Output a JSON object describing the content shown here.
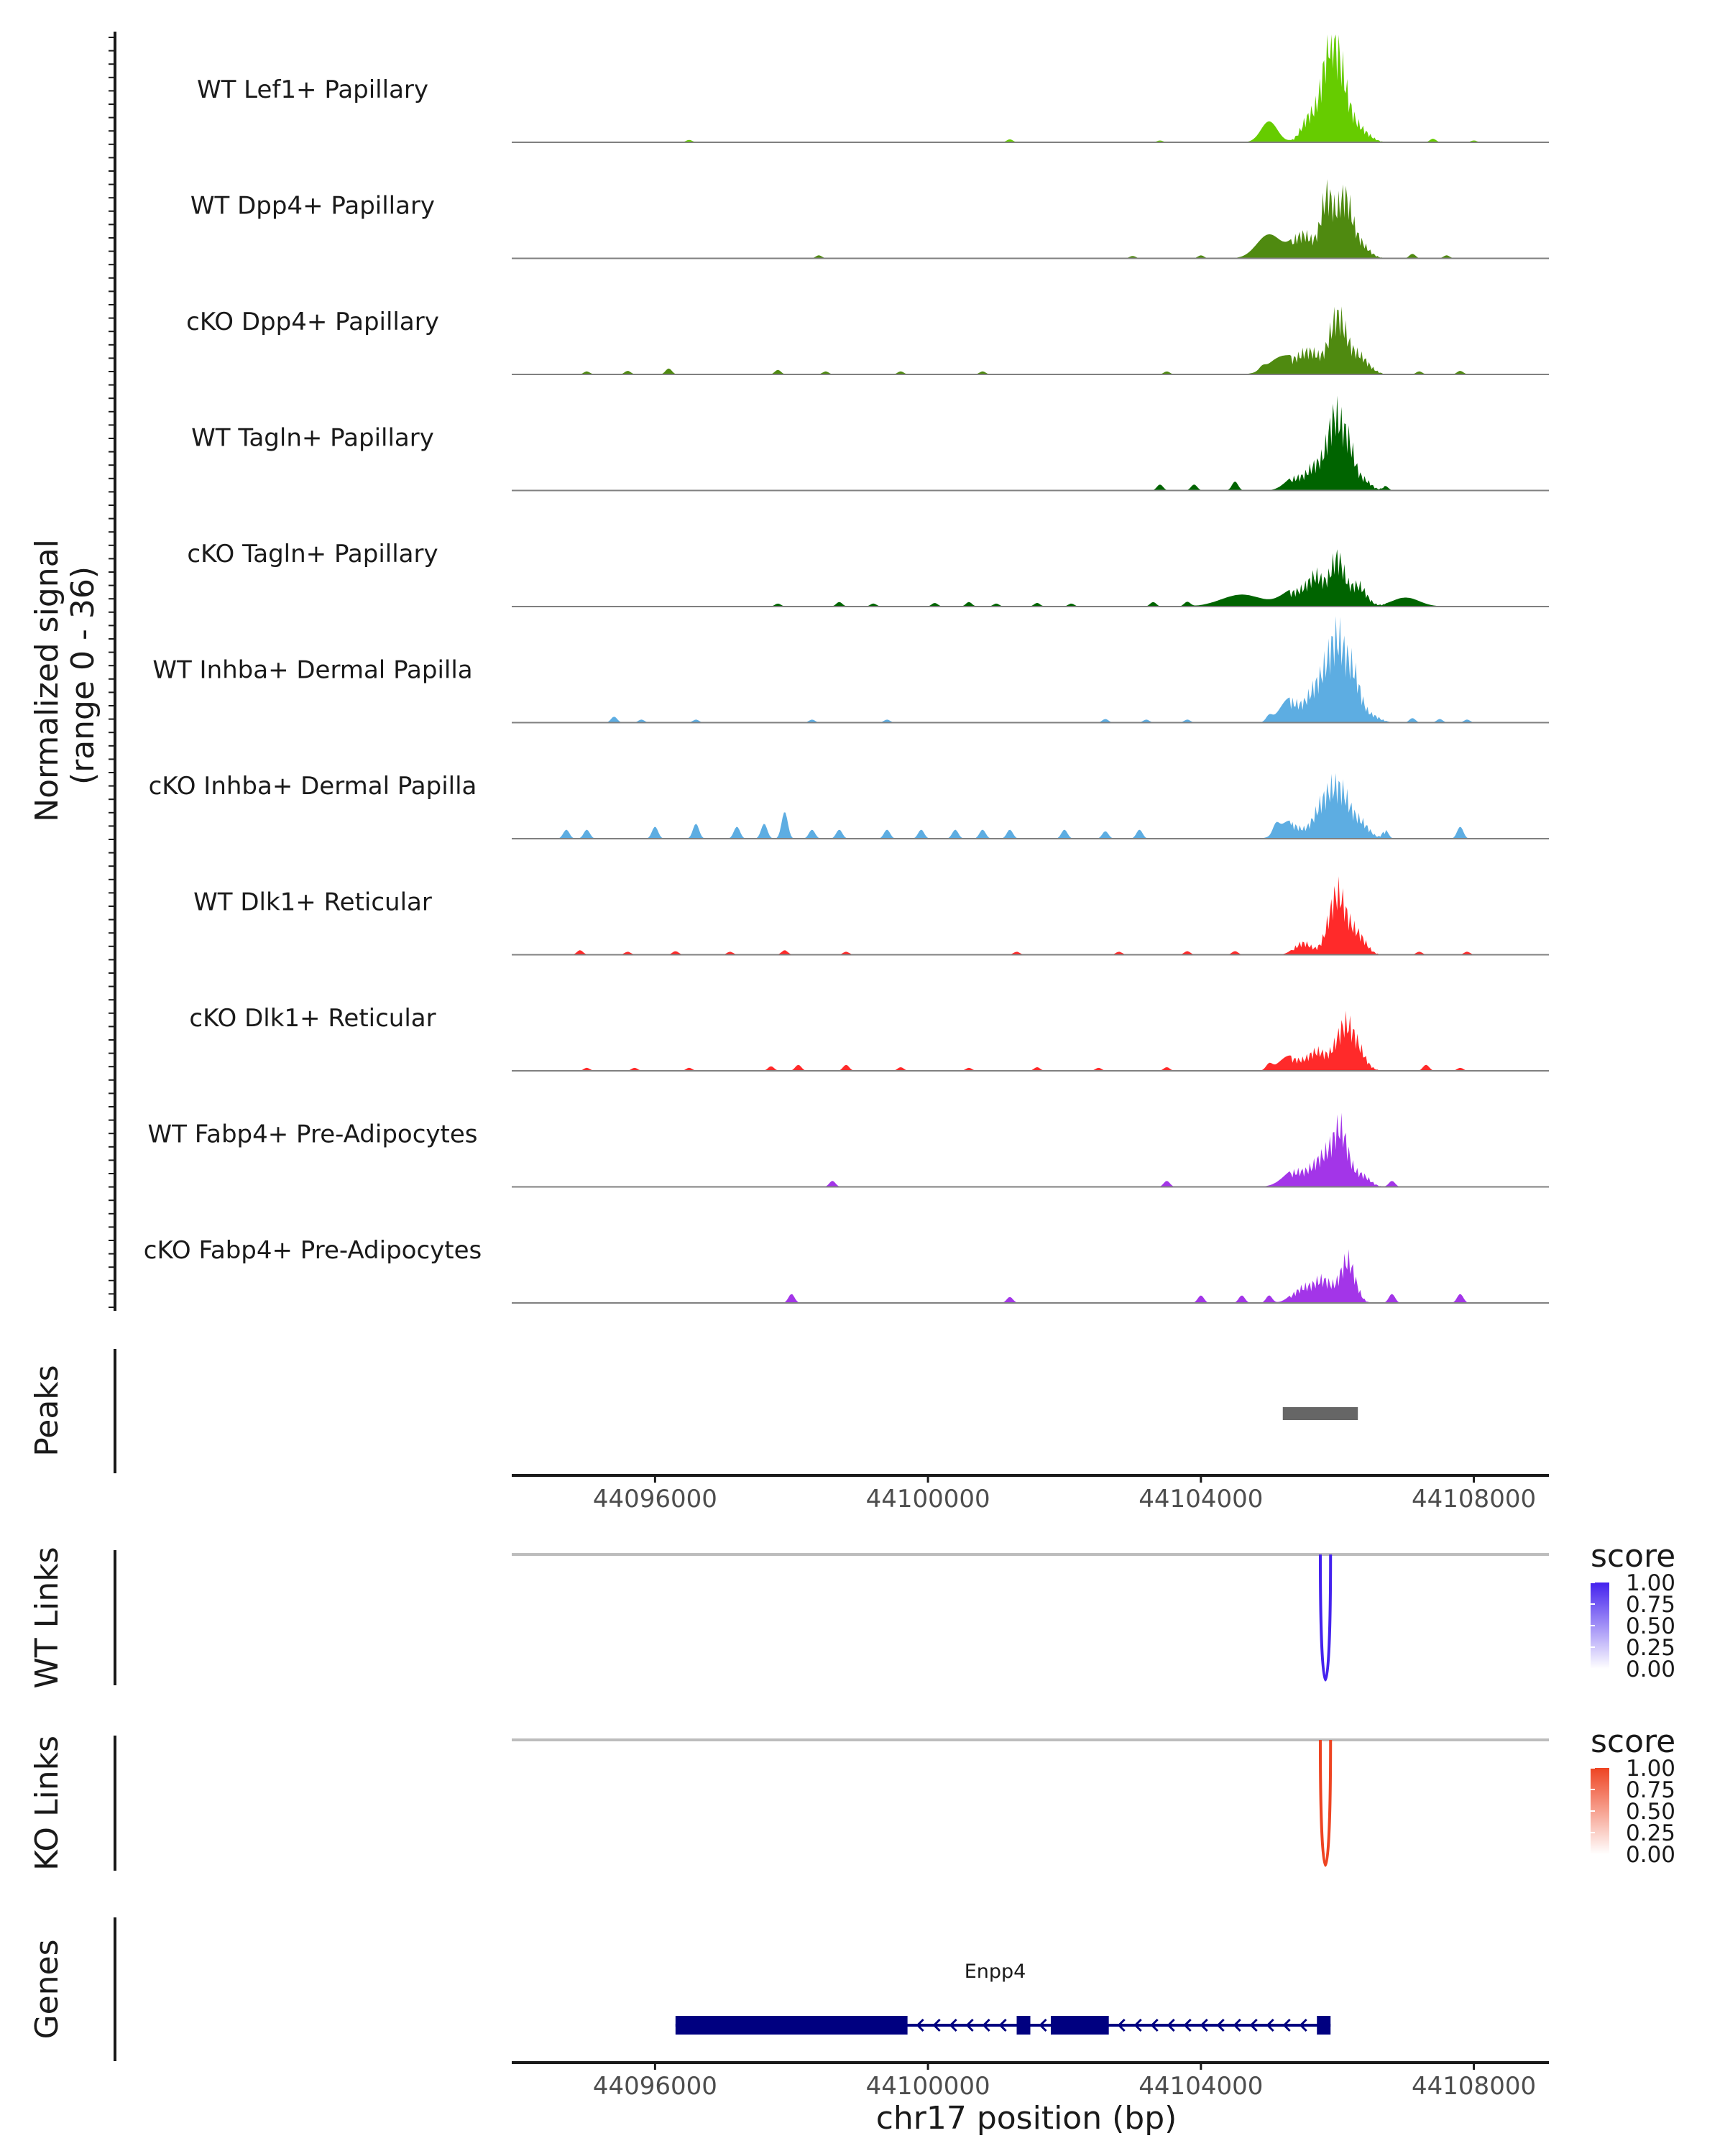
{
  "chart_data": {
    "type": "area",
    "title": "",
    "xlabel": "chr17 position (bp)",
    "region": {
      "chrom": "chr17",
      "start": 44093900,
      "end": 44109100
    },
    "x_ticks": [
      44096000,
      44100000,
      44104000,
      44108000
    ],
    "x_tick_labels": [
      "44096000",
      "44100000",
      "44104000",
      "44108000"
    ],
    "coverage": {
      "ylabel_line1": "Normalized signal",
      "ylabel_line2": "(range 0 - 36)",
      "ylim": [
        0,
        36
      ],
      "tracks": [
        {
          "name": "WT Lef1+ Papillary",
          "color": "#66CC00",
          "peaks": [
            [
              44105000,
              7,
              120
            ],
            [
              44105600,
              11,
              120
            ],
            [
              44106000,
              33,
              130
            ],
            [
              44105850,
              22,
              100
            ],
            [
              44106300,
              6,
              150
            ]
          ],
          "noise": [
            [
              44096500,
              0.8
            ],
            [
              44101200,
              1
            ],
            [
              44103400,
              0.6
            ],
            [
              44107400,
              1.2
            ],
            [
              44108000,
              0.6
            ]
          ]
        },
        {
          "name": "WT Dpp4+ Papillary",
          "color": "#4F8A10",
          "peaks": [
            [
              44105000,
              8,
              180
            ],
            [
              44105500,
              10,
              150
            ],
            [
              44105850,
              26,
              90
            ],
            [
              44106100,
              24,
              100
            ],
            [
              44106300,
              7,
              140
            ]
          ],
          "noise": [
            [
              44098400,
              1
            ],
            [
              44103000,
              0.8
            ],
            [
              44104000,
              1
            ],
            [
              44107100,
              1.5
            ],
            [
              44107600,
              1
            ]
          ]
        },
        {
          "name": "cKO Dpp4+ Papillary",
          "color": "#4F8A10",
          "peaks": [
            [
              44105200,
              6,
              200
            ],
            [
              44105600,
              9,
              150
            ],
            [
              44106000,
              24,
              120
            ],
            [
              44106300,
              8,
              150
            ]
          ],
          "noise": [
            [
              44095000,
              1
            ],
            [
              44095600,
              1.2
            ],
            [
              44096200,
              2
            ],
            [
              44097800,
              1.5
            ],
            [
              44098500,
              1
            ],
            [
              44099600,
              1
            ],
            [
              44100800,
              1
            ],
            [
              44103500,
              1
            ],
            [
              44104900,
              1.2
            ],
            [
              44107200,
              1
            ],
            [
              44107800,
              1.2
            ]
          ]
        },
        {
          "name": "WT Tagln+ Papillary",
          "color": "#006400",
          "peaks": [
            [
              44105400,
              5,
              150
            ],
            [
              44105700,
              10,
              120
            ],
            [
              44105950,
              28,
              100
            ],
            [
              44106150,
              20,
              100
            ],
            [
              44106400,
              4,
              100
            ]
          ],
          "noise": [
            [
              44103400,
              2
            ],
            [
              44103900,
              2
            ],
            [
              44104500,
              3
            ],
            [
              44106700,
              1.5
            ]
          ]
        },
        {
          "name": "cKO Tagln+ Papillary",
          "color": "#006400",
          "peaks": [
            [
              44104600,
              4,
              300
            ],
            [
              44105400,
              6,
              200
            ],
            [
              44105700,
              11,
              120
            ],
            [
              44106000,
              20,
              100
            ],
            [
              44106300,
              9,
              120
            ],
            [
              44107000,
              3,
              200
            ]
          ],
          "noise": [
            [
              44097800,
              1
            ],
            [
              44098700,
              1.5
            ],
            [
              44099200,
              1
            ],
            [
              44100100,
              1.2
            ],
            [
              44100600,
              1.5
            ],
            [
              44101000,
              1
            ],
            [
              44101600,
              1.2
            ],
            [
              44102100,
              1
            ],
            [
              44103300,
              1.5
            ],
            [
              44103800,
              1.5
            ]
          ]
        },
        {
          "name": "WT Inhba+ Dermal Papilla",
          "color": "#5DADE2",
          "peaks": [
            [
              44105300,
              8,
              140
            ],
            [
              44105700,
              14,
              150
            ],
            [
              44106000,
              34,
              140
            ],
            [
              44106250,
              15,
              100
            ],
            [
              44106500,
              3,
              120
            ]
          ],
          "noise": [
            [
              44095400,
              2
            ],
            [
              44095800,
              1
            ],
            [
              44096600,
              1
            ],
            [
              44098300,
              1
            ],
            [
              44099400,
              1
            ],
            [
              44102600,
              1.2
            ],
            [
              44103200,
              1
            ],
            [
              44103800,
              1
            ],
            [
              44105000,
              2
            ],
            [
              44107100,
              1.5
            ],
            [
              44107500,
              1.2
            ],
            [
              44107900,
              1
            ]
          ]
        },
        {
          "name": "cKO Inhba+ Dermal Papilla",
          "color": "#5DADE2",
          "peaks": [
            [
              44105300,
              6,
              150
            ],
            [
              44105800,
              14,
              150
            ],
            [
              44106050,
              18,
              140
            ],
            [
              44106350,
              6,
              120
            ]
          ],
          "noise": [
            [
              44094700,
              3
            ],
            [
              44095000,
              3
            ],
            [
              44096000,
              4
            ],
            [
              44096600,
              5
            ],
            [
              44097200,
              4
            ],
            [
              44097600,
              5
            ],
            [
              44097900,
              9
            ],
            [
              44098300,
              3
            ],
            [
              44098700,
              3
            ],
            [
              44099400,
              3
            ],
            [
              44099900,
              3
            ],
            [
              44100400,
              3
            ],
            [
              44100800,
              3
            ],
            [
              44101200,
              3
            ],
            [
              44102000,
              3
            ],
            [
              44102600,
              2.5
            ],
            [
              44103100,
              3
            ],
            [
              44105100,
              3
            ],
            [
              44106700,
              3
            ],
            [
              44107800,
              4
            ]
          ]
        },
        {
          "name": "WT Dlk1+ Reticular",
          "color": "#FF2A2A",
          "peaks": [
            [
              44105500,
              5,
              120
            ],
            [
              44106000,
              26,
              130
            ],
            [
              44106300,
              8,
              120
            ]
          ],
          "noise": [
            [
              44094900,
              1.5
            ],
            [
              44095600,
              1
            ],
            [
              44096300,
              1.2
            ],
            [
              44097100,
              1
            ],
            [
              44097900,
              1.5
            ],
            [
              44098800,
              1
            ],
            [
              44101300,
              1
            ],
            [
              44102800,
              1
            ],
            [
              44103800,
              1.2
            ],
            [
              44104500,
              1.2
            ],
            [
              44107200,
              1
            ],
            [
              44107900,
              1
            ]
          ]
        },
        {
          "name": "cKO Dlk1+ Reticular",
          "color": "#FF2A2A",
          "peaks": [
            [
              44105300,
              5,
              150
            ],
            [
              44105700,
              8,
              140
            ],
            [
              44106100,
              18,
              130
            ],
            [
              44106300,
              7,
              120
            ]
          ],
          "noise": [
            [
              44095000,
              1
            ],
            [
              44095700,
              1
            ],
            [
              44096500,
              1
            ],
            [
              44097700,
              1.5
            ],
            [
              44098100,
              2
            ],
            [
              44098800,
              2
            ],
            [
              44099600,
              1.2
            ],
            [
              44100600,
              1
            ],
            [
              44101600,
              1.2
            ],
            [
              44102500,
              1
            ],
            [
              44103500,
              1.2
            ],
            [
              44105000,
              2
            ],
            [
              44107300,
              2
            ],
            [
              44107800,
              1
            ]
          ]
        },
        {
          "name": "WT Fabp4+ Pre-Adipocytes",
          "color": "#A335E8",
          "peaks": [
            [
              44105400,
              6,
              180
            ],
            [
              44105800,
              12,
              150
            ],
            [
              44106050,
              22,
              110
            ],
            [
              44106350,
              5,
              120
            ]
          ],
          "noise": [
            [
              44098600,
              2
            ],
            [
              44103500,
              2
            ],
            [
              44106800,
              2
            ]
          ]
        },
        {
          "name": "cKO Fabp4+ Pre-Adipocytes",
          "color": "#A335E8",
          "peaks": [
            [
              44105500,
              6,
              150
            ],
            [
              44105800,
              9,
              130
            ],
            [
              44106150,
              18,
              110
            ]
          ],
          "noise": [
            [
              44098000,
              3
            ],
            [
              44101200,
              2
            ],
            [
              44104000,
              2.5
            ],
            [
              44104600,
              2.5
            ],
            [
              44105000,
              2.5
            ],
            [
              44106800,
              3
            ],
            [
              44107800,
              3
            ]
          ]
        }
      ]
    },
    "peaks_track": {
      "label": "Peaks",
      "color": "#666666",
      "regions": [
        [
          44105200,
          44106300
        ]
      ]
    },
    "links": [
      {
        "label": "WT Links",
        "legend_title": "score",
        "color": "#4422EE",
        "from": 44105750,
        "to": 44105900,
        "score": 1.0,
        "legend_ticks": [
          "1.00",
          "0.75",
          "0.50",
          "0.25",
          "0.00"
        ]
      },
      {
        "label": "KO Links",
        "legend_title": "score",
        "color": "#EE4422",
        "from": 44105750,
        "to": 44105900,
        "score": 1.0,
        "legend_ticks": [
          "1.00",
          "0.75",
          "0.50",
          "0.25",
          "0.00"
        ]
      }
    ],
    "genes": {
      "label": "Genes",
      "color": "#000080",
      "items": [
        {
          "name": "Enpp4",
          "strand": "-",
          "start": 44096300,
          "end": 44105900,
          "exons": [
            [
              44096300,
              44099700
            ],
            [
              44101300,
              44101500
            ],
            [
              44101800,
              44102650
            ],
            [
              44105700,
              44105900
            ]
          ]
        }
      ]
    }
  }
}
